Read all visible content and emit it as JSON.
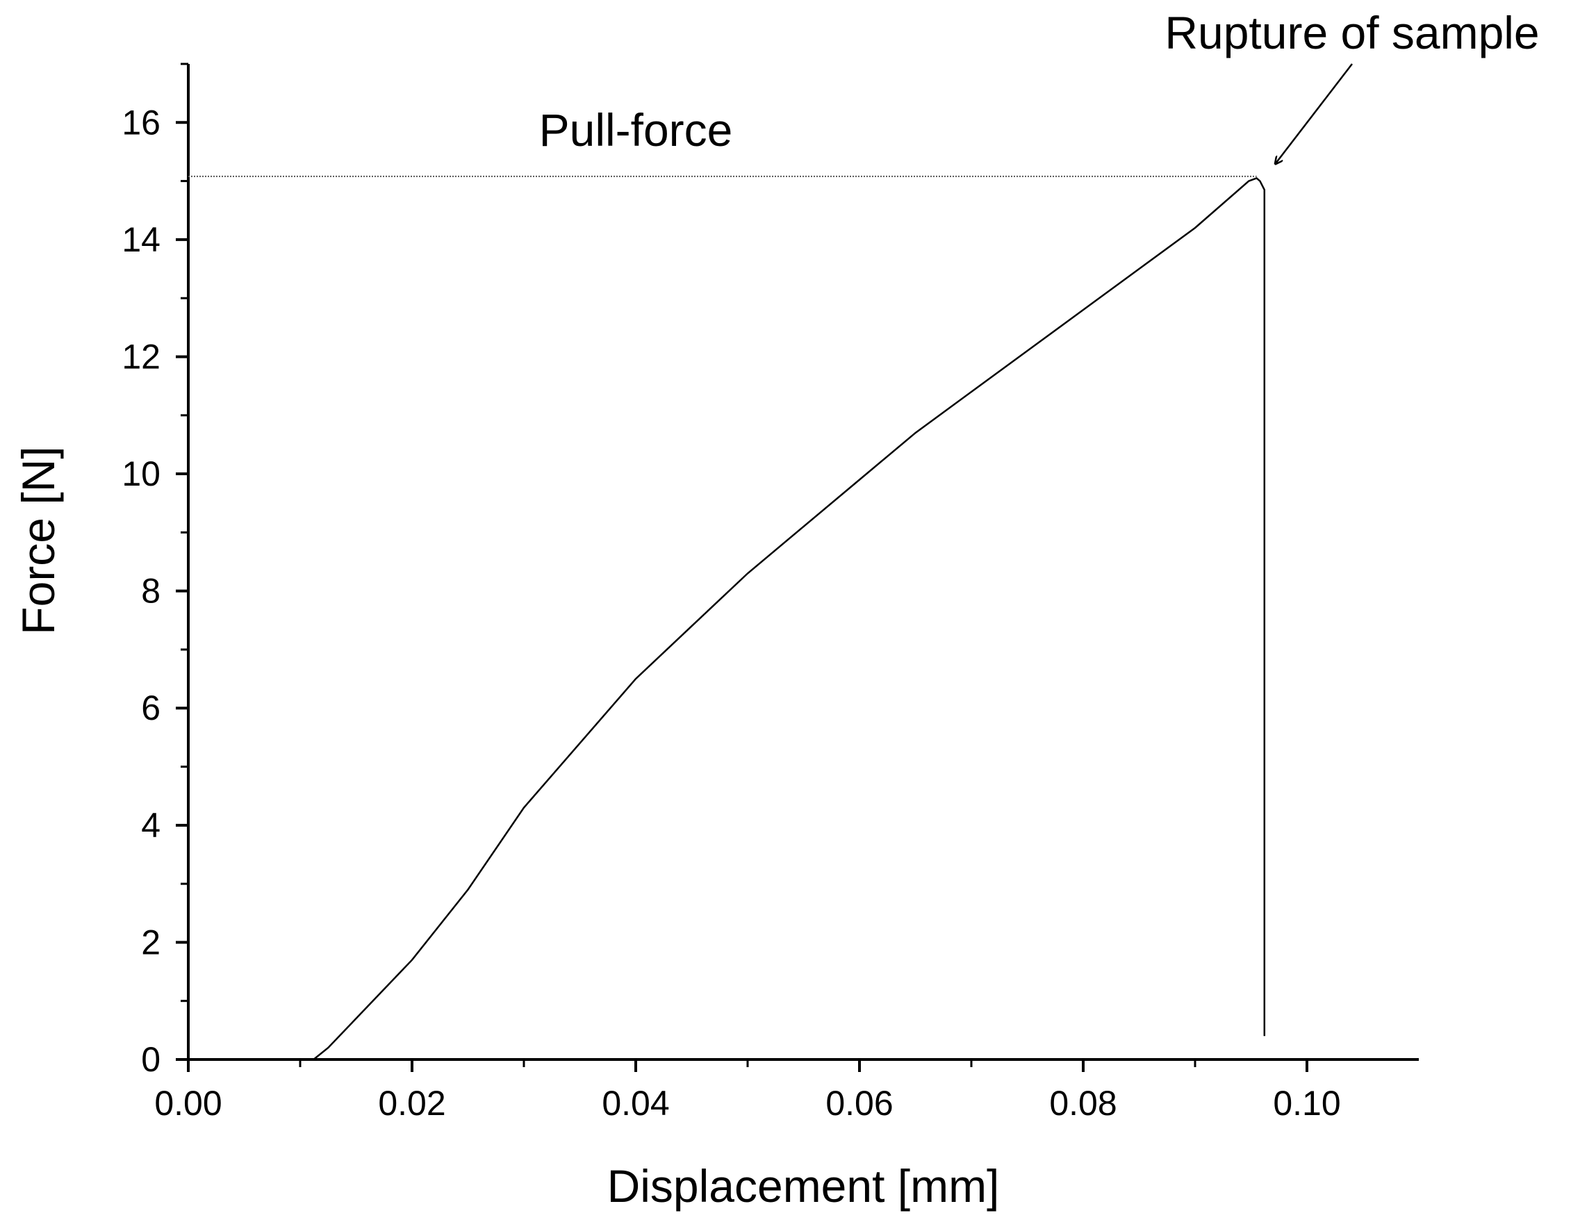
{
  "chart_data": {
    "type": "line",
    "xlabel": "Displacement [mm]",
    "ylabel": "Force [N]",
    "xlim": [
      0,
      0.11
    ],
    "ylim": [
      0,
      17
    ],
    "x_ticks": [
      "0.00",
      "0.02",
      "0.04",
      "0.06",
      "0.08",
      "0.10"
    ],
    "x_tick_values": [
      0.0,
      0.02,
      0.04,
      0.06,
      0.08,
      0.1
    ],
    "y_ticks": [
      "0",
      "2",
      "4",
      "6",
      "8",
      "10",
      "12",
      "14",
      "16"
    ],
    "y_tick_values": [
      0,
      2,
      4,
      6,
      8,
      10,
      12,
      14,
      16
    ],
    "grid": false,
    "series": [
      {
        "x": [
          0.0,
          0.0112,
          0.0125,
          0.016,
          0.02,
          0.025,
          0.03,
          0.035,
          0.04,
          0.045,
          0.05,
          0.055,
          0.06,
          0.065,
          0.07,
          0.075,
          0.08,
          0.085,
          0.09,
          0.0948,
          0.0955,
          0.0958,
          0.0962,
          0.0962
        ],
        "y": [
          0.0,
          0.0,
          0.2,
          0.9,
          1.7,
          2.9,
          4.3,
          5.4,
          6.5,
          7.4,
          8.3,
          9.1,
          9.9,
          10.7,
          11.4,
          12.1,
          12.8,
          13.5,
          14.2,
          15.0,
          15.05,
          15.0,
          14.85,
          0.4
        ]
      }
    ],
    "reference_line": {
      "y": 15.08,
      "x_start": 0.0,
      "x_end": 0.0955
    },
    "annotations": {
      "pull_force": {
        "text": "Pull-force",
        "x": 0.04,
        "y": 15.6
      },
      "rupture": {
        "text": "Rupture of sample",
        "arrow_to_x": 0.0972,
        "arrow_to_y": 15.3
      }
    },
    "colors": {
      "line": "#000000",
      "reference_line": "#555555"
    }
  }
}
